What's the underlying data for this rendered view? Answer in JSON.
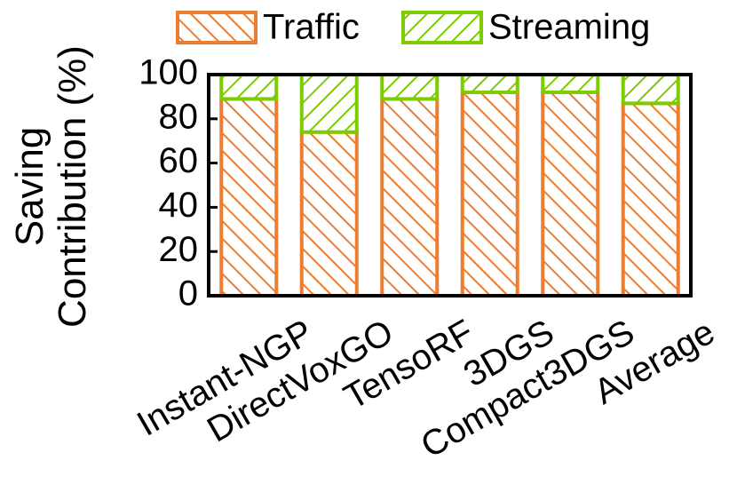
{
  "chart_data": {
    "type": "stacked-bar",
    "y_label": [
      "Saving",
      "Contribution (%)"
    ],
    "categories": [
      "Instant-NGP",
      "DirectVoxGO",
      "TensoRF",
      "3DGS",
      "Compact3DGS",
      "Average"
    ],
    "series": [
      {
        "name": "Traffic",
        "color": "#ed7d31",
        "hatch": "back",
        "values": [
          89,
          74,
          89,
          92,
          92,
          87
        ]
      },
      {
        "name": "Streaming",
        "color": "#7ccc00",
        "hatch": "forward",
        "values": [
          11,
          26,
          11,
          8,
          8,
          13
        ]
      }
    ],
    "ylim": [
      0,
      100
    ],
    "yticks": [
      0,
      20,
      40,
      60,
      80,
      100
    ]
  }
}
